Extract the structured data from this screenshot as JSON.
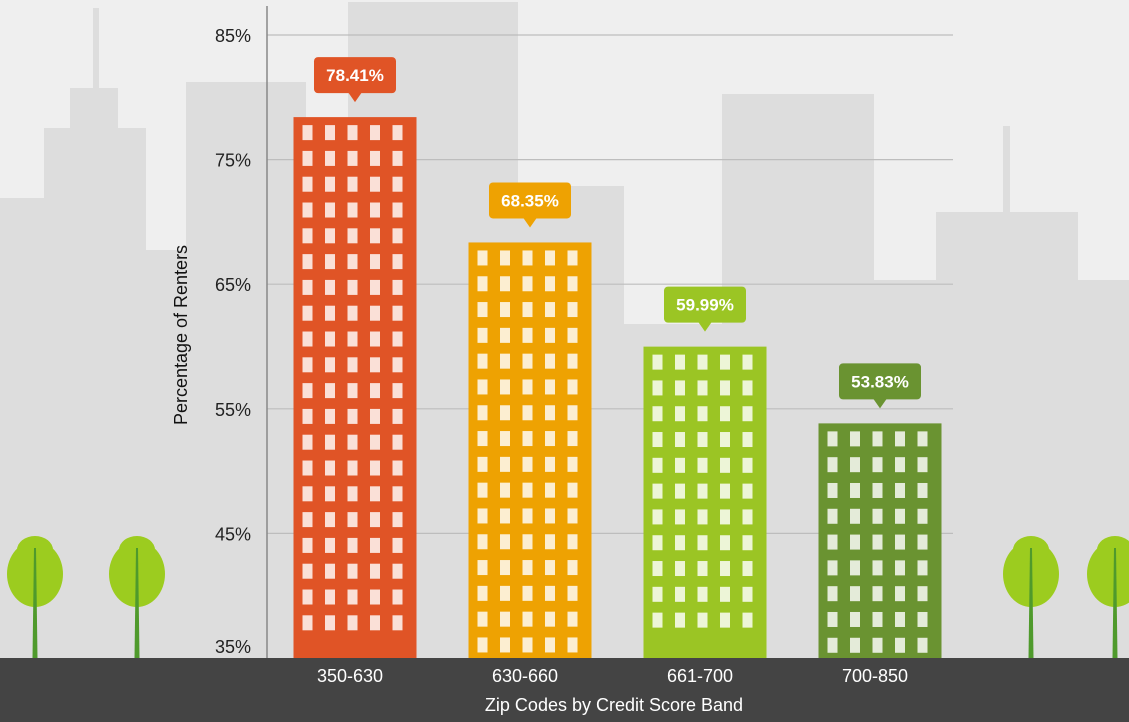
{
  "chart_data": {
    "type": "bar",
    "title": "",
    "xlabel": "Zip Codes by Credit Score Band",
    "ylabel": "Percentage of Renters",
    "categories": [
      "350-630",
      "630-660",
      "661-700",
      "700-850"
    ],
    "values": [
      78.41,
      68.35,
      59.99,
      53.83
    ],
    "data_labels": [
      "78.41%",
      "68.35%",
      "59.99%",
      "53.83%"
    ],
    "bar_colors": [
      "#e05426",
      "#eea202",
      "#9bc524",
      "#6a9331"
    ],
    "ylim": [
      35,
      85
    ],
    "yticks": [
      35,
      45,
      55,
      65,
      75,
      85
    ],
    "ytick_labels": [
      "35%",
      "45%",
      "55%",
      "65%",
      "75%",
      "85%"
    ],
    "grid": true,
    "legend": "none"
  },
  "colors": {
    "background": "#efefef",
    "skyline": "#dddddd",
    "ground": "#444444",
    "tree_foliage": "#9ccc1f",
    "tree_trunk": "#4f9a2c"
  }
}
